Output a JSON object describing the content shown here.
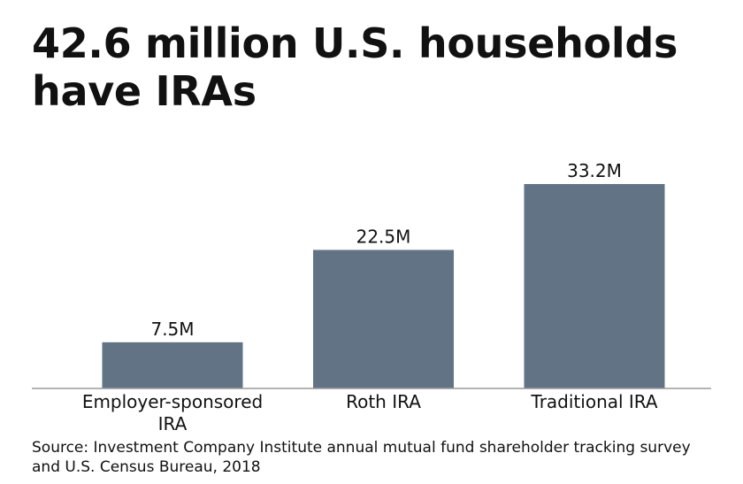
{
  "title": "42.6 million U.S. households have IRAs",
  "source": "Source: Investment Company Institute annual mutual fund shareholder tracking survey and U.S. Census Bureau, 2018",
  "colors": {
    "bar": "#637386",
    "axis": "#9a9a9a",
    "text": "#111111"
  },
  "chart_data": {
    "type": "bar",
    "title": "42.6 million U.S. households have IRAs",
    "xlabel": "",
    "ylabel": "",
    "ylim": [
      0,
      33.2
    ],
    "grid": false,
    "unit": "million households",
    "categories": [
      "Employer-sponsored IRA",
      "Roth IRA",
      "Traditional IRA"
    ],
    "category_lines": [
      [
        "Employer-sponsored",
        "IRA"
      ],
      [
        "Roth IRA"
      ],
      [
        "Traditional IRA"
      ]
    ],
    "values": [
      7.5,
      22.5,
      33.2
    ],
    "data_labels": [
      "7.5M",
      "22.5M",
      "33.2M"
    ]
  }
}
